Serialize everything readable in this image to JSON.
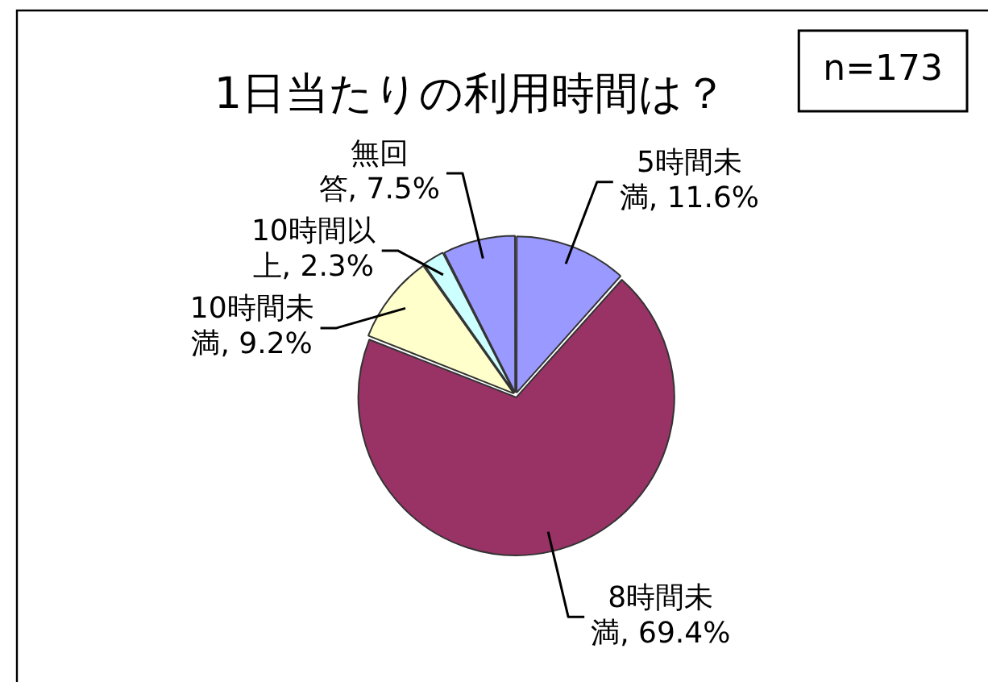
{
  "chart_data": {
    "type": "pie",
    "title": "1日当たりの利用時間は？",
    "categories": [
      "5時間未満",
      "8時間未満",
      "10時間未満",
      "10時間以上",
      "無回答"
    ],
    "values": [
      11.6,
      69.4,
      9.2,
      2.3,
      7.5
    ],
    "colors": [
      "#9999ff",
      "#993366",
      "#ffffcc",
      "#ccffff",
      "#9999ff"
    ],
    "value_labels": [
      "11.6%",
      "69.4%",
      "9.2%",
      "2.3%",
      "7.5%"
    ],
    "annotations": [
      "n=173"
    ]
  }
}
